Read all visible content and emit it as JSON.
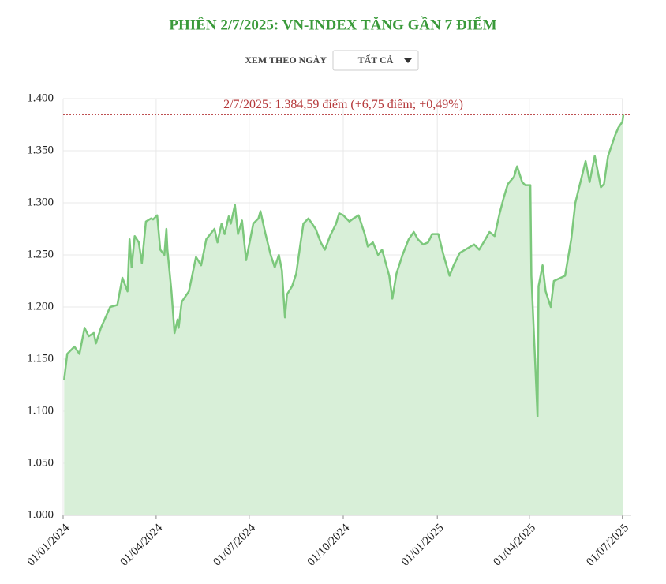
{
  "title": "PHIÊN 2/7/2025: VN-INDEX TĂNG GẦN 7 ĐIỂM",
  "controls": {
    "label": "XEM THEO NGÀY",
    "select": "TẤT CẢ"
  },
  "chart_data": {
    "type": "area",
    "annotation": "2/7/2025: 1.384,59 điểm (+6,75 điểm; +0,49%)",
    "color": "#7cc87c",
    "fill_color": "#d8efd8",
    "annotation_color": "#b5383a",
    "grid": true,
    "xlim": [
      "2024-01-01",
      "2025-07-02"
    ],
    "xticks": [
      {
        "value": "2024-01-01",
        "label": "01/01/2024"
      },
      {
        "value": "2024-04-01",
        "label": "01/04/2024"
      },
      {
        "value": "2024-07-01",
        "label": "01/07/2024"
      },
      {
        "value": "2024-10-01",
        "label": "01/10/2024"
      },
      {
        "value": "2025-01-01",
        "label": "01/01/2025"
      },
      {
        "value": "2025-04-01",
        "label": "01/04/2025"
      },
      {
        "value": "2025-07-01",
        "label": "01/07/2025"
      }
    ],
    "ylim": [
      1000,
      1400
    ],
    "yticks": [
      {
        "value": 1000,
        "label": "1.000"
      },
      {
        "value": 1050,
        "label": "1.050"
      },
      {
        "value": 1100,
        "label": "1.100"
      },
      {
        "value": 1150,
        "label": "1.150"
      },
      {
        "value": 1200,
        "label": "1.200"
      },
      {
        "value": 1250,
        "label": "1.250"
      },
      {
        "value": 1300,
        "label": "1.300"
      },
      {
        "value": 1350,
        "label": "1.350"
      },
      {
        "value": 1400,
        "label": "1.400"
      }
    ],
    "x": [
      "2024-01-02",
      "2024-01-05",
      "2024-01-12",
      "2024-01-17",
      "2024-01-22",
      "2024-01-26",
      "2024-01-31",
      "2024-02-02",
      "2024-02-07",
      "2024-02-16",
      "2024-02-23",
      "2024-02-28",
      "2024-03-04",
      "2024-03-06",
      "2024-03-08",
      "2024-03-11",
      "2024-03-15",
      "2024-03-18",
      "2024-03-22",
      "2024-03-27",
      "2024-03-29",
      "2024-04-02",
      "2024-04-05",
      "2024-04-09",
      "2024-04-11",
      "2024-04-12",
      "2024-04-16",
      "2024-04-19",
      "2024-04-22",
      "2024-04-23",
      "2024-04-26",
      "2024-05-03",
      "2024-05-10",
      "2024-05-15",
      "2024-05-20",
      "2024-05-24",
      "2024-05-28",
      "2024-05-31",
      "2024-06-04",
      "2024-06-07",
      "2024-06-11",
      "2024-06-13",
      "2024-06-17",
      "2024-06-20",
      "2024-06-24",
      "2024-06-28",
      "2024-07-02",
      "2024-07-05",
      "2024-07-10",
      "2024-07-12",
      "2024-07-17",
      "2024-07-22",
      "2024-07-26",
      "2024-07-30",
      "2024-08-02",
      "2024-08-05",
      "2024-08-07",
      "2024-08-12",
      "2024-08-16",
      "2024-08-20",
      "2024-08-23",
      "2024-08-28",
      "2024-09-04",
      "2024-09-09",
      "2024-09-13",
      "2024-09-18",
      "2024-09-24",
      "2024-09-27",
      "2024-10-01",
      "2024-10-07",
      "2024-10-11",
      "2024-10-16",
      "2024-10-22",
      "2024-10-25",
      "2024-10-30",
      "2024-11-04",
      "2024-11-08",
      "2024-11-15",
      "2024-11-18",
      "2024-11-22",
      "2024-11-28",
      "2024-12-04",
      "2024-12-09",
      "2024-12-13",
      "2024-12-18",
      "2024-12-23",
      "2024-12-27",
      "2025-01-02",
      "2025-01-07",
      "2025-01-13",
      "2025-01-17",
      "2025-01-23",
      "2025-02-06",
      "2025-02-11",
      "2025-02-17",
      "2025-02-21",
      "2025-02-26",
      "2025-03-03",
      "2025-03-07",
      "2025-03-11",
      "2025-03-17",
      "2025-03-20",
      "2025-03-25",
      "2025-03-28",
      "2025-04-02",
      "2025-04-03",
      "2025-04-09",
      "2025-04-10",
      "2025-04-14",
      "2025-04-17",
      "2025-04-22",
      "2025-04-25",
      "2025-05-06",
      "2025-05-12",
      "2025-05-16",
      "2025-05-21",
      "2025-05-26",
      "2025-05-30",
      "2025-06-04",
      "2025-06-10",
      "2025-06-13",
      "2025-06-17",
      "2025-06-24",
      "2025-06-27",
      "2025-07-01",
      "2025-07-02"
    ],
    "values": [
      1130,
      1155,
      1162,
      1155,
      1180,
      1172,
      1175,
      1165,
      1180,
      1200,
      1202,
      1228,
      1215,
      1265,
      1238,
      1268,
      1262,
      1242,
      1282,
      1285,
      1284,
      1288,
      1255,
      1250,
      1275,
      1255,
      1215,
      1175,
      1188,
      1180,
      1205,
      1215,
      1248,
      1240,
      1265,
      1270,
      1275,
      1262,
      1280,
      1270,
      1287,
      1280,
      1298,
      1270,
      1283,
      1245,
      1265,
      1280,
      1285,
      1292,
      1270,
      1250,
      1238,
      1250,
      1235,
      1190,
      1212,
      1220,
      1232,
      1260,
      1280,
      1285,
      1275,
      1262,
      1255,
      1268,
      1280,
      1290,
      1288,
      1282,
      1285,
      1288,
      1270,
      1258,
      1262,
      1250,
      1255,
      1230,
      1208,
      1232,
      1250,
      1265,
      1272,
      1265,
      1260,
      1262,
      1270,
      1270,
      1250,
      1230,
      1240,
      1252,
      1260,
      1255,
      1265,
      1272,
      1268,
      1290,
      1305,
      1318,
      1325,
      1335,
      1320,
      1317,
      1317,
      1230,
      1095,
      1220,
      1240,
      1215,
      1200,
      1225,
      1230,
      1265,
      1300,
      1320,
      1340,
      1320,
      1345,
      1315,
      1318,
      1345,
      1365,
      1372,
      1377.84,
      1384.59
    ]
  }
}
